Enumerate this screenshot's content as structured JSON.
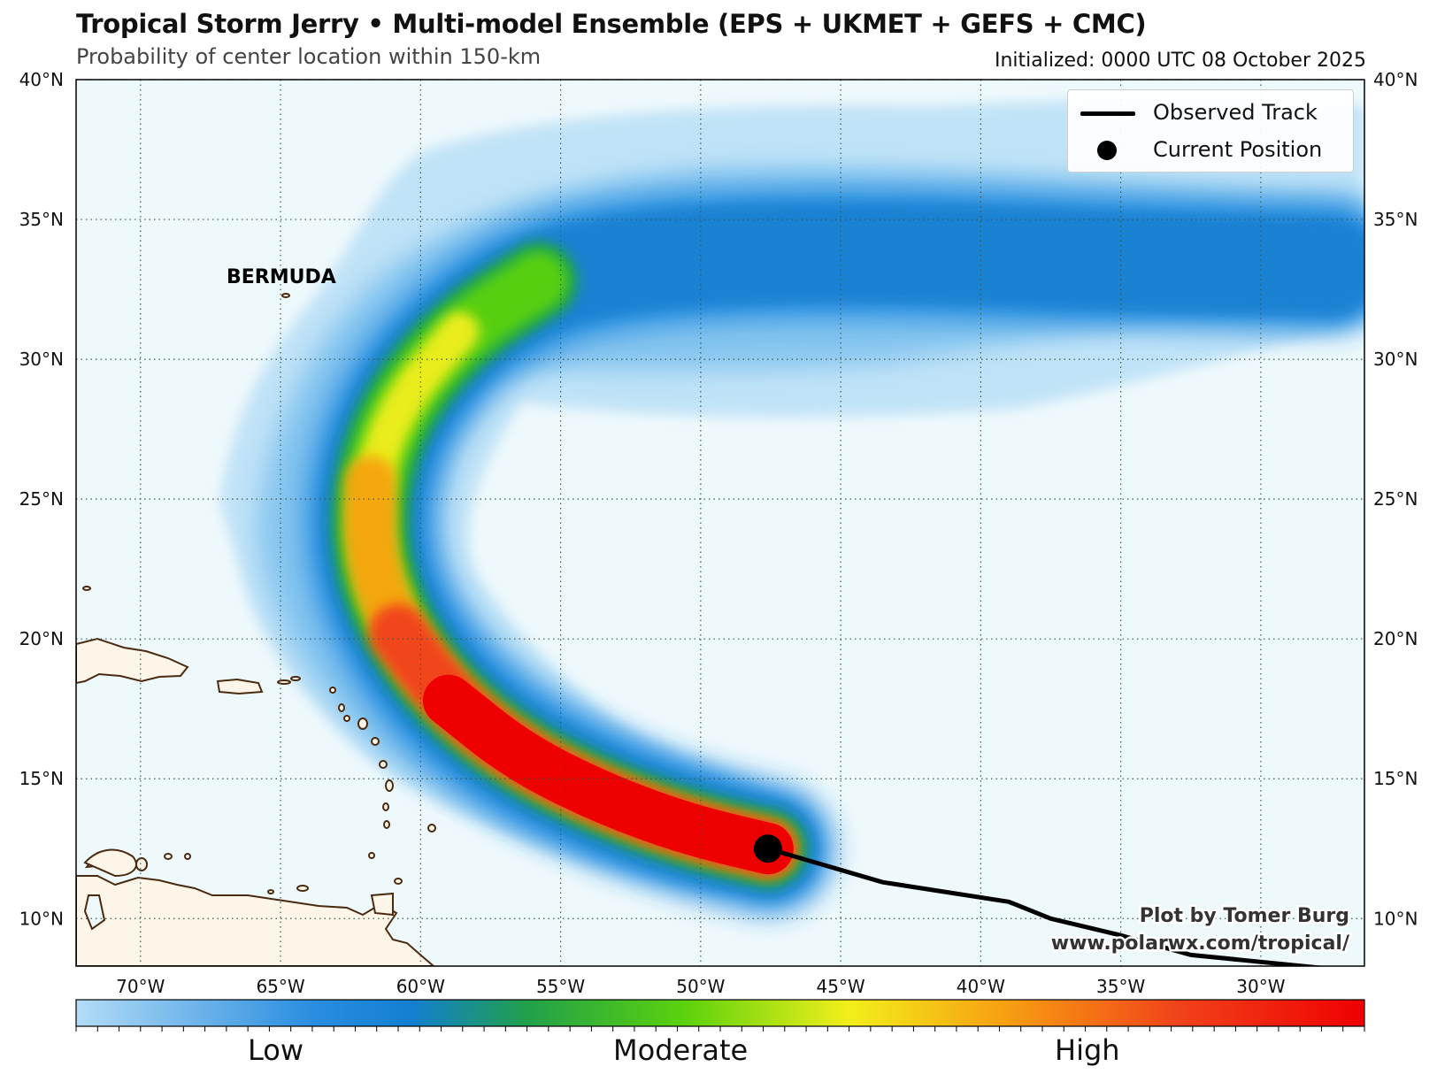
{
  "header": {
    "title": "Tropical Storm Jerry • Multi-model Ensemble (EPS + UKMET + GEFS + CMC)",
    "subtitle": "Probability of center location within 150-km",
    "initialized": "Initialized: 0000 UTC 08 October 2025"
  },
  "map": {
    "lat_ticks": [
      "40°N",
      "35°N",
      "30°N",
      "25°N",
      "20°N",
      "15°N",
      "10°N"
    ],
    "lon_ticks": [
      "70°W",
      "65°W",
      "60°W",
      "55°W",
      "50°W",
      "45°W",
      "40°W",
      "35°W",
      "30°W"
    ],
    "place_label": "BERMUDA",
    "ocean_color": "#eef9fc",
    "land_color": "#fdf5e8",
    "coast_color": "#4a2a10"
  },
  "legend": {
    "observed_track": "Observed Track",
    "current_position": "Current Position"
  },
  "colorbar": {
    "low": "Low",
    "moderate": "Moderate",
    "high": "High",
    "stops": [
      "#b3dcf6",
      "#1a82d8",
      "#21a04b",
      "#5ad10d",
      "#f2ef1a",
      "#f7a011",
      "#f1401a",
      "#ef0000"
    ]
  },
  "credit": {
    "line1": "Plot by Tomer Burg",
    "line2": "www.polarwx.com/tropical/"
  },
  "track": {
    "observed": [
      [
        -27.5,
        8.2
      ],
      [
        -30.5,
        8.5
      ],
      [
        -32.5,
        8.7
      ],
      [
        -35.0,
        9.4
      ],
      [
        -37.5,
        10.0
      ],
      [
        -39.0,
        10.6
      ],
      [
        -43.5,
        11.3
      ],
      [
        -47.6,
        12.5
      ]
    ],
    "current_position": [
      -47.6,
      12.5
    ]
  },
  "ensemble_spine": [
    [
      -47.6,
      12.5
    ],
    [
      -50.5,
      13.2
    ],
    [
      -53.5,
      14.3
    ],
    [
      -56.5,
      15.8
    ],
    [
      -59.0,
      17.8
    ],
    [
      -60.8,
      20.2
    ],
    [
      -61.8,
      22.8
    ],
    [
      -61.8,
      25.6
    ],
    [
      -60.8,
      28.4
    ],
    [
      -58.6,
      31.0
    ],
    [
      -55.8,
      32.8
    ],
    [
      -52.5,
      33.5
    ],
    [
      -48.0,
      33.8
    ],
    [
      -42.0,
      33.8
    ],
    [
      -35.0,
      33.5
    ],
    [
      -27.5,
      33.3
    ]
  ]
}
